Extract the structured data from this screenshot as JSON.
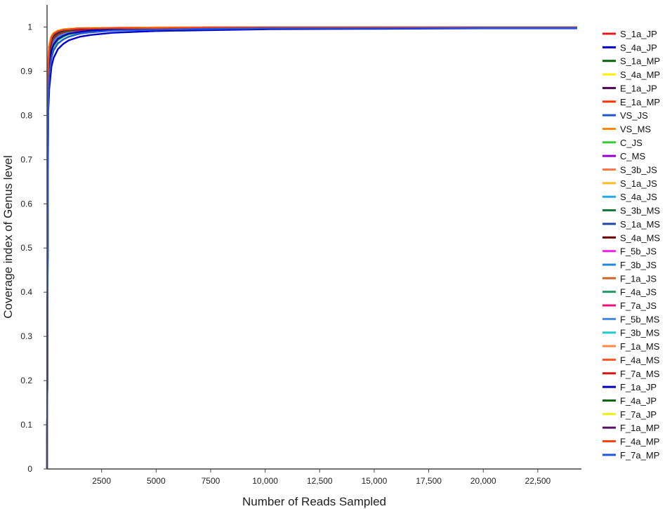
{
  "chart_data": {
    "type": "line",
    "title": "",
    "xlabel": "Number of Reads Sampled",
    "ylabel": "Coverage index of Genus level",
    "xlim": [
      0,
      24500
    ],
    "ylim": [
      0,
      1.05
    ],
    "x_ticks": [
      2500,
      5000,
      7500,
      10000,
      12500,
      15000,
      17500,
      20000,
      22500
    ],
    "x_tick_labels": [
      "2500",
      "5000",
      "7500",
      "10,000",
      "12,500",
      "15,000",
      "17,500",
      "20,000",
      "22,500"
    ],
    "y_ticks": [
      0,
      0.1,
      0.2,
      0.3,
      0.4,
      0.5,
      0.6,
      0.7,
      0.8,
      0.9,
      1
    ],
    "y_tick_labels": [
      "0",
      "0.1",
      "0.2",
      "0.3",
      "0.4",
      "0.5",
      "0.6",
      "0.7",
      "0.8",
      "0.9",
      "1"
    ],
    "grid": false,
    "legend_position": "right",
    "x": [
      0,
      50,
      100,
      200,
      300,
      500,
      750,
      1000,
      1500,
      2000,
      3000,
      5000,
      7500,
      10000,
      15000,
      20000,
      24300
    ],
    "series": [
      {
        "name": "S_1a_JP",
        "color": "#e41a1c",
        "values": [
          0,
          0.9,
          0.95,
          0.975,
          0.983,
          0.99,
          0.993,
          0.995,
          0.996,
          0.997,
          0.998,
          0.998,
          0.999,
          0.999,
          0.999,
          0.999,
          0.999
        ]
      },
      {
        "name": "S_4a_JP",
        "color": "#0000cc",
        "values": [
          0,
          0.8,
          0.86,
          0.91,
          0.93,
          0.95,
          0.962,
          0.97,
          0.978,
          0.982,
          0.987,
          0.991,
          0.993,
          0.995,
          0.996,
          0.997,
          0.997
        ]
      },
      {
        "name": "S_1a_MP",
        "color": "#006400",
        "values": [
          0,
          0.87,
          0.925,
          0.955,
          0.967,
          0.978,
          0.984,
          0.987,
          0.991,
          0.993,
          0.995,
          0.996,
          0.997,
          0.998,
          0.998,
          0.998,
          0.998
        ]
      },
      {
        "name": "S_4a_MP",
        "color": "#ffee00",
        "values": [
          0,
          0.91,
          0.955,
          0.978,
          0.985,
          0.991,
          0.994,
          0.995,
          0.997,
          0.997,
          0.998,
          0.998,
          0.999,
          0.999,
          0.999,
          0.999,
          0.999
        ]
      },
      {
        "name": "E_1a_JP",
        "color": "#4b0055",
        "values": [
          0,
          0.89,
          0.94,
          0.968,
          0.978,
          0.986,
          0.99,
          0.992,
          0.994,
          0.995,
          0.996,
          0.997,
          0.998,
          0.998,
          0.999,
          0.999,
          0.999
        ]
      },
      {
        "name": "E_1a_MP",
        "color": "#ff3300",
        "values": [
          0,
          0.92,
          0.96,
          0.98,
          0.987,
          0.992,
          0.995,
          0.996,
          0.997,
          0.998,
          0.998,
          0.999,
          0.999,
          0.999,
          0.999,
          0.999,
          0.999
        ]
      },
      {
        "name": "VS_JS",
        "color": "#2255cc",
        "values": [
          0,
          0.86,
          0.92,
          0.952,
          0.965,
          0.977,
          0.983,
          0.987,
          0.991,
          0.993,
          0.995,
          0.996,
          0.997,
          0.998,
          0.998,
          0.998,
          0.998
        ]
      },
      {
        "name": "VS_MS",
        "color": "#ff8800",
        "values": [
          0,
          0.88,
          0.935,
          0.963,
          0.974,
          0.983,
          0.988,
          0.99,
          0.993,
          0.994,
          0.996,
          0.997,
          0.998,
          0.998,
          0.998,
          0.999,
          0.999
        ]
      },
      {
        "name": "C_JS",
        "color": "#33cc33",
        "values": [
          0,
          0.84,
          0.9,
          0.94,
          0.955,
          0.97,
          0.978,
          0.983,
          0.988,
          0.99,
          0.993,
          0.995,
          0.996,
          0.997,
          0.998,
          0.998,
          0.998
        ]
      },
      {
        "name": "C_MS",
        "color": "#9900cc",
        "values": [
          0,
          0.9,
          0.948,
          0.972,
          0.981,
          0.988,
          0.992,
          0.994,
          0.995,
          0.996,
          0.997,
          0.998,
          0.998,
          0.999,
          0.999,
          0.999,
          0.999
        ]
      },
      {
        "name": "S_3b_JS",
        "color": "#ff7744",
        "values": [
          0,
          0.89,
          0.942,
          0.969,
          0.979,
          0.987,
          0.991,
          0.993,
          0.995,
          0.996,
          0.997,
          0.998,
          0.998,
          0.999,
          0.999,
          0.999,
          0.999
        ]
      },
      {
        "name": "S_1a_JS",
        "color": "#ffbb22",
        "values": [
          0,
          0.91,
          0.952,
          0.975,
          0.983,
          0.99,
          0.993,
          0.995,
          0.996,
          0.997,
          0.998,
          0.998,
          0.999,
          0.999,
          0.999,
          0.999,
          0.999
        ]
      },
      {
        "name": "S_4a_JS",
        "color": "#22aaee",
        "values": [
          0,
          0.87,
          0.928,
          0.958,
          0.97,
          0.98,
          0.986,
          0.989,
          0.992,
          0.994,
          0.995,
          0.997,
          0.997,
          0.998,
          0.998,
          0.998,
          0.998
        ]
      },
      {
        "name": "S_3b_MS",
        "color": "#1a7a3a",
        "values": [
          0,
          0.88,
          0.933,
          0.962,
          0.973,
          0.982,
          0.987,
          0.99,
          0.993,
          0.994,
          0.996,
          0.997,
          0.998,
          0.998,
          0.998,
          0.999,
          0.999
        ]
      },
      {
        "name": "S_1a_MS",
        "color": "#2244aa",
        "values": [
          0,
          0.9,
          0.946,
          0.971,
          0.98,
          0.988,
          0.991,
          0.993,
          0.995,
          0.996,
          0.997,
          0.998,
          0.998,
          0.999,
          0.999,
          0.999,
          0.999
        ]
      },
      {
        "name": "S_4a_MS",
        "color": "#660000",
        "values": [
          0,
          0.91,
          0.955,
          0.977,
          0.985,
          0.991,
          0.994,
          0.995,
          0.997,
          0.997,
          0.998,
          0.998,
          0.999,
          0.999,
          0.999,
          0.999,
          0.999
        ]
      },
      {
        "name": "F_5b_JS",
        "color": "#ff22ee",
        "values": [
          0,
          0.89,
          0.94,
          0.967,
          0.977,
          0.985,
          0.99,
          0.992,
          0.994,
          0.995,
          0.997,
          0.998,
          0.998,
          0.998,
          0.999,
          0.999,
          0.999
        ]
      },
      {
        "name": "F_3b_JS",
        "color": "#2288dd",
        "values": [
          0,
          0.86,
          0.918,
          0.951,
          0.964,
          0.976,
          0.983,
          0.987,
          0.991,
          0.993,
          0.995,
          0.996,
          0.997,
          0.998,
          0.998,
          0.998,
          0.998
        ]
      },
      {
        "name": "F_1a_JS",
        "color": "#cc6622",
        "values": [
          0,
          0.9,
          0.949,
          0.973,
          0.982,
          0.989,
          0.992,
          0.994,
          0.996,
          0.997,
          0.997,
          0.998,
          0.999,
          0.999,
          0.999,
          0.999,
          0.999
        ]
      },
      {
        "name": "F_4a_JS",
        "color": "#229966",
        "values": [
          0,
          0.88,
          0.936,
          0.964,
          0.975,
          0.984,
          0.989,
          0.991,
          0.994,
          0.995,
          0.996,
          0.997,
          0.998,
          0.998,
          0.999,
          0.999,
          0.999
        ]
      },
      {
        "name": "F_7a_JS",
        "color": "#ee1177",
        "values": [
          0,
          0.92,
          0.958,
          0.979,
          0.986,
          0.992,
          0.994,
          0.996,
          0.997,
          0.997,
          0.998,
          0.999,
          0.999,
          0.999,
          0.999,
          0.999,
          0.999
        ]
      },
      {
        "name": "F_5b_MS",
        "color": "#4488dd",
        "values": [
          0,
          0.87,
          0.927,
          0.957,
          0.969,
          0.98,
          0.985,
          0.989,
          0.992,
          0.993,
          0.995,
          0.997,
          0.997,
          0.998,
          0.998,
          0.998,
          0.998
        ]
      },
      {
        "name": "F_3b_MS",
        "color": "#22cccc",
        "values": [
          0,
          0.89,
          0.943,
          0.97,
          0.979,
          0.987,
          0.991,
          0.993,
          0.995,
          0.996,
          0.997,
          0.998,
          0.998,
          0.999,
          0.999,
          0.999,
          0.999
        ]
      },
      {
        "name": "F_1a_MS",
        "color": "#ff8844",
        "values": [
          0,
          0.9,
          0.951,
          0.974,
          0.983,
          0.989,
          0.993,
          0.994,
          0.996,
          0.997,
          0.998,
          0.998,
          0.999,
          0.999,
          0.999,
          0.999,
          0.999
        ]
      },
      {
        "name": "F_4a_MS",
        "color": "#ff5522",
        "values": [
          0,
          0.91,
          0.953,
          0.976,
          0.984,
          0.99,
          0.993,
          0.995,
          0.996,
          0.997,
          0.998,
          0.998,
          0.999,
          0.999,
          0.999,
          0.999,
          0.999
        ]
      },
      {
        "name": "F_7a_MS",
        "color": "#dd1111",
        "values": [
          0,
          0.88,
          0.934,
          0.963,
          0.974,
          0.983,
          0.988,
          0.991,
          0.993,
          0.995,
          0.996,
          0.997,
          0.998,
          0.998,
          0.999,
          0.999,
          0.999
        ]
      },
      {
        "name": "F_1a_JP",
        "color": "#0000bb",
        "values": [
          0,
          0.85,
          0.91,
          0.946,
          0.96,
          0.973,
          0.98,
          0.985,
          0.989,
          0.992,
          0.994,
          0.996,
          0.997,
          0.997,
          0.998,
          0.998,
          0.998
        ]
      },
      {
        "name": "F_4a_JP",
        "color": "#116611",
        "values": [
          0,
          0.89,
          0.941,
          0.968,
          0.978,
          0.986,
          0.99,
          0.992,
          0.995,
          0.996,
          0.997,
          0.998,
          0.998,
          0.999,
          0.999,
          0.999,
          0.999
        ]
      },
      {
        "name": "F_7a_JP",
        "color": "#eeee11",
        "values": [
          0,
          0.92,
          0.959,
          0.98,
          0.987,
          0.992,
          0.995,
          0.996,
          0.997,
          0.998,
          0.998,
          0.999,
          0.999,
          0.999,
          0.999,
          0.999,
          0.999
        ]
      },
      {
        "name": "F_1a_MP",
        "color": "#551166",
        "values": [
          0,
          0.9,
          0.947,
          0.972,
          0.981,
          0.988,
          0.992,
          0.994,
          0.995,
          0.996,
          0.997,
          0.998,
          0.998,
          0.999,
          0.999,
          0.999,
          0.999
        ]
      },
      {
        "name": "F_4a_MP",
        "color": "#ff4411",
        "values": [
          0,
          0.91,
          0.954,
          0.977,
          0.985,
          0.991,
          0.994,
          0.995,
          0.997,
          0.997,
          0.998,
          0.998,
          0.999,
          0.999,
          0.999,
          0.999,
          0.999
        ]
      },
      {
        "name": "F_7a_MP",
        "color": "#2255dd",
        "values": [
          0,
          0.83,
          0.89,
          0.93,
          0.947,
          0.963,
          0.972,
          0.978,
          0.985,
          0.988,
          0.992,
          0.994,
          0.996,
          0.997,
          0.997,
          0.998,
          0.998
        ]
      }
    ]
  }
}
